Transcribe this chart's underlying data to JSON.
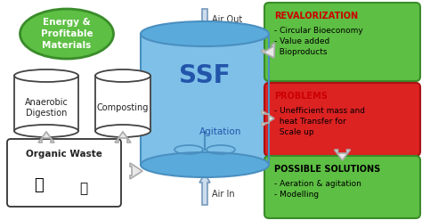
{
  "bg_color": "#ffffff",
  "ssf_body_color": "#7ec0e8",
  "ssf_top_color": "#5aabdc",
  "ssf_edge_color": "#4a8fc0",
  "ssf_label": "SSF",
  "ssf_sublabel": "Agitation",
  "air_out_label": "Air Out",
  "air_in_label": "Air In",
  "green_ellipse_color": "#5dbf43",
  "green_ellipse_edge": "#3a8c2a",
  "green_ellipse_text": "Energy &\nProfitable\nMaterials",
  "box1_label": "Anaerobic\nDigestion",
  "box2_label": "Composting",
  "organic_waste_label": "Organic Waste",
  "organic_waste_edge": "#333333",
  "rev_box_color": "#5dbf43",
  "rev_box_edge": "#3a8c2a",
  "rev_title": "REVALORIZATION",
  "rev_title_color": "#cc0000",
  "rev_body": "- Circular Bioeconomy\n- Value added\n  Bioproducts",
  "prob_box_color": "#dd2222",
  "prob_box_edge": "#aa1111",
  "prob_title": "PROBLEMS",
  "prob_title_color": "#cc0000",
  "prob_body": "- Unefficient mass and\n  heat Transfer for\n  Scale up",
  "sol_box_color": "#5dbf43",
  "sol_box_edge": "#3a8c2a",
  "sol_title": "POSSIBLE SOLUTIONS",
  "sol_title_color": "#000000",
  "sol_body": "- Aeration & agitation\n- Modelling",
  "hollow_arrow_fill": "#e8e8e8",
  "hollow_arrow_edge": "#aaaaaa",
  "text_color": "#333333"
}
